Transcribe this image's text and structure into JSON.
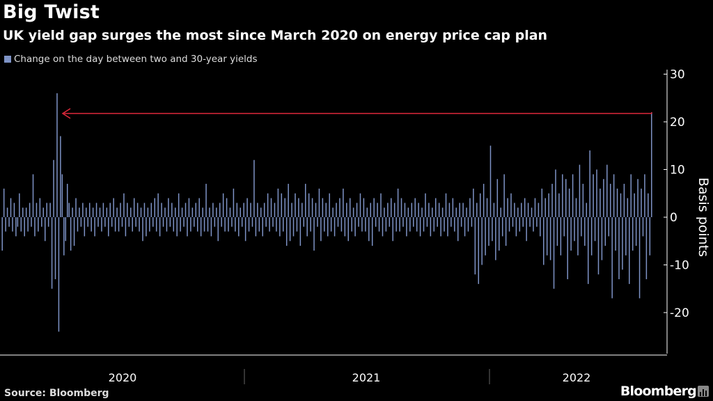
{
  "header": {
    "title": "Big Twist",
    "subtitle": "UK yield gap surges the most since March 2020 on energy price cap plan"
  },
  "footer": {
    "source": "Source: Bloomberg",
    "brand": "Bloomberg",
    "brand_icon": "bloomberg-chart-icon"
  },
  "colors": {
    "background": "#000000",
    "bar": "#7e93c6",
    "arrow": "#e0293b",
    "axis": "#ffffff",
    "divider": "#666666"
  },
  "chart_data": {
    "type": "bar",
    "title": "Big Twist",
    "subtitle": "UK yield gap surges the most since March 2020 on energy price cap plan",
    "legend": [
      "Change on the day between two and 30-year yields"
    ],
    "legend_position": "top-left",
    "xlabel": "",
    "ylabel": "Basis points",
    "ylim": [
      -29,
      31
    ],
    "yticks": [
      30,
      20,
      10,
      0,
      -10,
      -20
    ],
    "ytick_labels": [
      "30",
      "20",
      "10",
      "0",
      "-10",
      "-20"
    ],
    "x_period_labels": [
      "2020",
      "2021",
      "2022"
    ],
    "x_range": [
      "2019-08",
      "2022-09"
    ],
    "grid": false,
    "annotation": {
      "type": "arrow",
      "from_value": 22,
      "from_date": "2022-09",
      "to_date": "2020-03",
      "description": "Arrow from latest 22 bp surge back to March 2020 peak"
    },
    "series": [
      {
        "name": "Change on the day between two and 30-year yields",
        "note": "Approximate daily values (bp) read from chart, chronological",
        "values": [
          -7,
          6,
          -3,
          2,
          -2,
          4,
          -3,
          3,
          -4,
          -2,
          5,
          -3,
          2,
          -4,
          2,
          -3,
          3,
          -2,
          9,
          -4,
          3,
          -3,
          4,
          -2,
          2,
          -5,
          3,
          -2,
          3,
          -15,
          12,
          -13,
          26,
          -24,
          17,
          9,
          -8,
          -5,
          7,
          3,
          -7,
          2,
          -6,
          4,
          -3,
          2,
          -2,
          3,
          -4,
          2,
          -2,
          3,
          -3,
          2,
          -4,
          3,
          -2,
          2,
          -3,
          3,
          -2,
          2,
          -4,
          3,
          -2,
          4,
          -3,
          2,
          -3,
          3,
          -2,
          5,
          -4,
          3,
          -2,
          2,
          -3,
          4,
          -2,
          3,
          -3,
          2,
          -5,
          3,
          -4,
          2,
          -3,
          3,
          -2,
          4,
          -3,
          5,
          -4,
          3,
          -2,
          2,
          -3,
          4,
          -2,
          3,
          -3,
          2,
          -4,
          5,
          -3,
          2,
          -2,
          3,
          -4,
          4,
          -3,
          2,
          -2,
          3,
          -3,
          4,
          -4,
          2,
          -3,
          7,
          -3,
          2,
          -4,
          3,
          -2,
          2,
          -5,
          3,
          -2,
          5,
          -3,
          4,
          -3,
          2,
          -2,
          6,
          -3,
          3,
          -4,
          2,
          -2,
          3,
          -5,
          4,
          -3,
          3,
          -2,
          12,
          -4,
          3,
          -3,
          2,
          -4,
          3,
          -2,
          5,
          -3,
          4,
          -2,
          3,
          -3,
          6,
          -4,
          5,
          -3,
          4,
          -6,
          7,
          -5,
          3,
          -4,
          5,
          -3,
          4,
          -6,
          3,
          -2,
          7,
          -4,
          5,
          -3,
          4,
          -7,
          3,
          -2,
          6,
          -5,
          4,
          -3,
          3,
          -4,
          5,
          -3,
          2,
          -4,
          3,
          -2,
          4,
          -3,
          6,
          -4,
          3,
          -5,
          4,
          -3,
          2,
          -4,
          3,
          -2,
          5,
          -3,
          4,
          -3,
          2,
          -5,
          3,
          -6,
          4,
          -2,
          3,
          -3,
          5,
          -4,
          2,
          -3,
          3,
          -2,
          4,
          -5,
          3,
          -3,
          6,
          -3,
          4,
          -2,
          3,
          -4,
          2,
          -3,
          3,
          -2,
          4,
          -3,
          3,
          -4,
          2,
          -3,
          5,
          -2,
          3,
          -4,
          2,
          -3,
          4,
          -2,
          3,
          -4,
          2,
          -3,
          5,
          -4,
          3,
          -2,
          4,
          -3,
          2,
          -5,
          3,
          -2,
          3,
          -4,
          2,
          -3,
          4,
          -2,
          6,
          -12,
          3,
          -14,
          5,
          -10,
          7,
          -8,
          4,
          -6,
          15,
          -5,
          3,
          -9,
          8,
          -7,
          2,
          -4,
          9,
          -6,
          4,
          -3,
          5,
          -2,
          3,
          -4,
          2,
          -3,
          3,
          -2,
          4,
          -5,
          3,
          -2,
          2,
          -3,
          4,
          -2,
          3,
          -4,
          6,
          -10,
          4,
          -8,
          5,
          -9,
          7,
          -15,
          10,
          -6,
          5,
          -8,
          9,
          -4,
          8,
          -13,
          6,
          -7,
          9,
          -5,
          4,
          -8,
          11,
          -4,
          7,
          -6,
          3,
          -14,
          14,
          -8,
          9,
          -5,
          10,
          -12,
          6,
          -9,
          8,
          -6,
          11,
          -4,
          7,
          -17,
          9,
          -7,
          6,
          -13,
          5,
          -11,
          7,
          -8,
          4,
          -14,
          9,
          -7,
          5,
          -6,
          8,
          -17,
          6,
          -4,
          9,
          -13,
          5,
          -8,
          22
        ]
      }
    ]
  }
}
